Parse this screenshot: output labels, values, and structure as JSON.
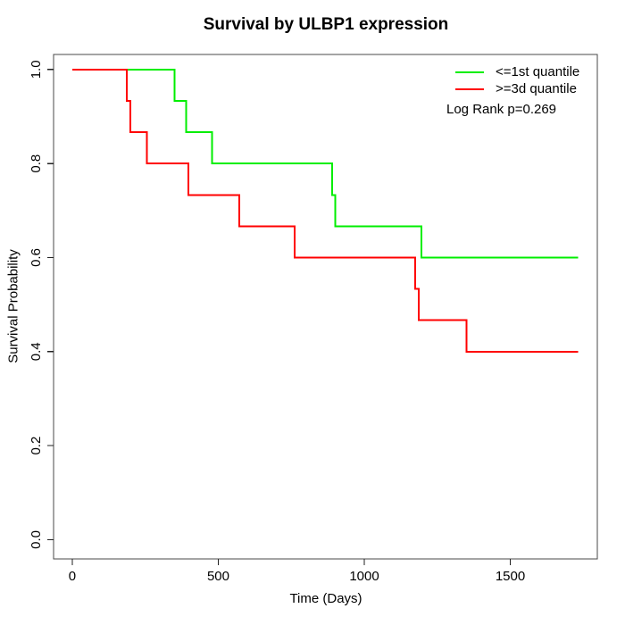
{
  "chart_data": {
    "type": "line",
    "variant": "kaplan_meier_step",
    "title": "Survival by ULBP1 expression",
    "xlabel": "Time (Days)",
    "ylabel": "Survival Probability",
    "x_ticks": [
      0,
      500,
      1000,
      1500
    ],
    "y_ticks": [
      "0.0",
      "0.2",
      "0.4",
      "0.6",
      "0.8",
      "1.0"
    ],
    "xlim": [
      -64,
      1798
    ],
    "ylim": [
      -0.041,
      1.032
    ],
    "grid": false,
    "legend_position": "top-right",
    "annotation": "Log Rank p=0.269",
    "series": [
      {
        "name": "<=1st quantile",
        "color": "#00ee00",
        "start": [
          0,
          1.0
        ],
        "events": [
          [
            350,
            0.9333
          ],
          [
            390,
            0.8667
          ],
          [
            478,
            0.8
          ],
          [
            890,
            0.7333
          ],
          [
            900,
            0.6667
          ],
          [
            1196,
            0.6
          ]
        ],
        "end_time": 1732,
        "final_survival": 0.6
      },
      {
        "name": ">=3d quantile",
        "color": "#ff0000",
        "start": [
          0,
          1.0
        ],
        "events": [
          [
            187,
            0.9333
          ],
          [
            199,
            0.8667
          ],
          [
            255,
            0.8
          ],
          [
            397,
            0.7333
          ],
          [
            572,
            0.6667
          ],
          [
            762,
            0.6
          ],
          [
            1175,
            0.5333
          ],
          [
            1187,
            0.4667
          ],
          [
            1350,
            0.4
          ]
        ],
        "end_time": 1733,
        "final_survival": 0.4
      }
    ]
  },
  "colors": {
    "frame": "#4a4a4a",
    "tick": "#222222",
    "text": "#000000",
    "background": "#ffffff"
  }
}
